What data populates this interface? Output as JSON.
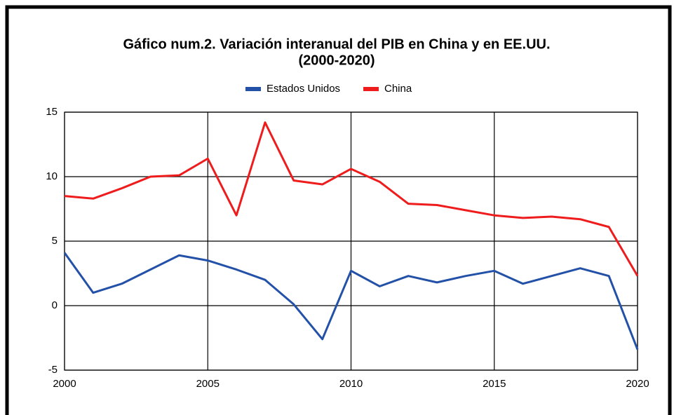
{
  "chart_data": {
    "type": "line",
    "title": [
      "Gáfico num.2. Variación interanual del PIB en China y en EE.UU.",
      "(2000-2020)"
    ],
    "x": [
      2000,
      2001,
      2002,
      2003,
      2004,
      2005,
      2006,
      2007,
      2008,
      2009,
      2010,
      2011,
      2012,
      2013,
      2014,
      2015,
      2016,
      2017,
      2018,
      2019,
      2020
    ],
    "series": [
      {
        "name": "Estados Unidos",
        "color": "#2451a8",
        "values": [
          4.1,
          1.0,
          1.7,
          2.8,
          3.9,
          3.5,
          2.8,
          2.0,
          0.1,
          -2.6,
          2.7,
          1.5,
          2.3,
          1.8,
          2.3,
          2.7,
          1.7,
          2.3,
          2.9,
          2.3,
          -3.4
        ]
      },
      {
        "name": "China",
        "color": "#ee1c1c",
        "values": [
          8.5,
          8.3,
          9.1,
          10.0,
          10.1,
          11.4,
          7.0,
          14.2,
          9.7,
          9.4,
          10.6,
          9.6,
          7.9,
          7.8,
          7.4,
          7.0,
          6.8,
          6.9,
          6.7,
          6.1,
          2.3
        ]
      }
    ],
    "xlim": [
      2000,
      2020
    ],
    "xticks": [
      2000,
      2005,
      2010,
      2015,
      2020
    ],
    "ylim": [
      -5,
      15
    ],
    "yticks": [
      -5,
      0,
      5,
      10,
      15
    ],
    "grid": true,
    "legend": "top"
  }
}
